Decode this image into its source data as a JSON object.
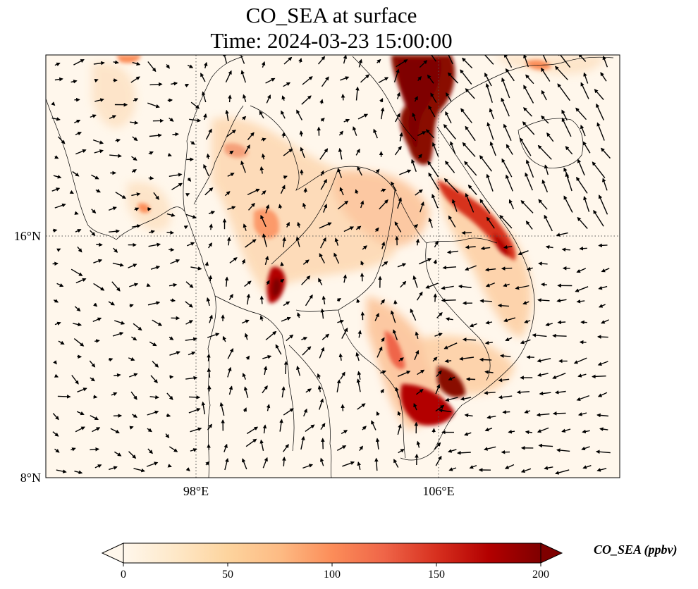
{
  "title": {
    "line1": "CO_SEA at surface",
    "line2": "Time: 2024-03-23 15:00:00"
  },
  "map": {
    "lat_labels": [
      "16°N",
      "8°N"
    ],
    "lon_labels": [
      "98°E",
      "106°E"
    ],
    "lon_range": [
      93,
      112
    ],
    "lat_range": [
      8,
      22
    ],
    "field_colormap": "OrRd",
    "coastline_color": "#000000",
    "gridline_style": "dotted"
  },
  "colorbar": {
    "title": "CO_SEA (ppbv)",
    "ticks": [
      "0",
      "50",
      "100",
      "150",
      "200"
    ],
    "range": [
      0,
      200
    ],
    "extend": "both",
    "colors": [
      "#fff7ec",
      "#fee8c8",
      "#fdd49e",
      "#fdbb84",
      "#fc8d59",
      "#ef6548",
      "#d7301f",
      "#b30000",
      "#7f0000"
    ]
  }
}
